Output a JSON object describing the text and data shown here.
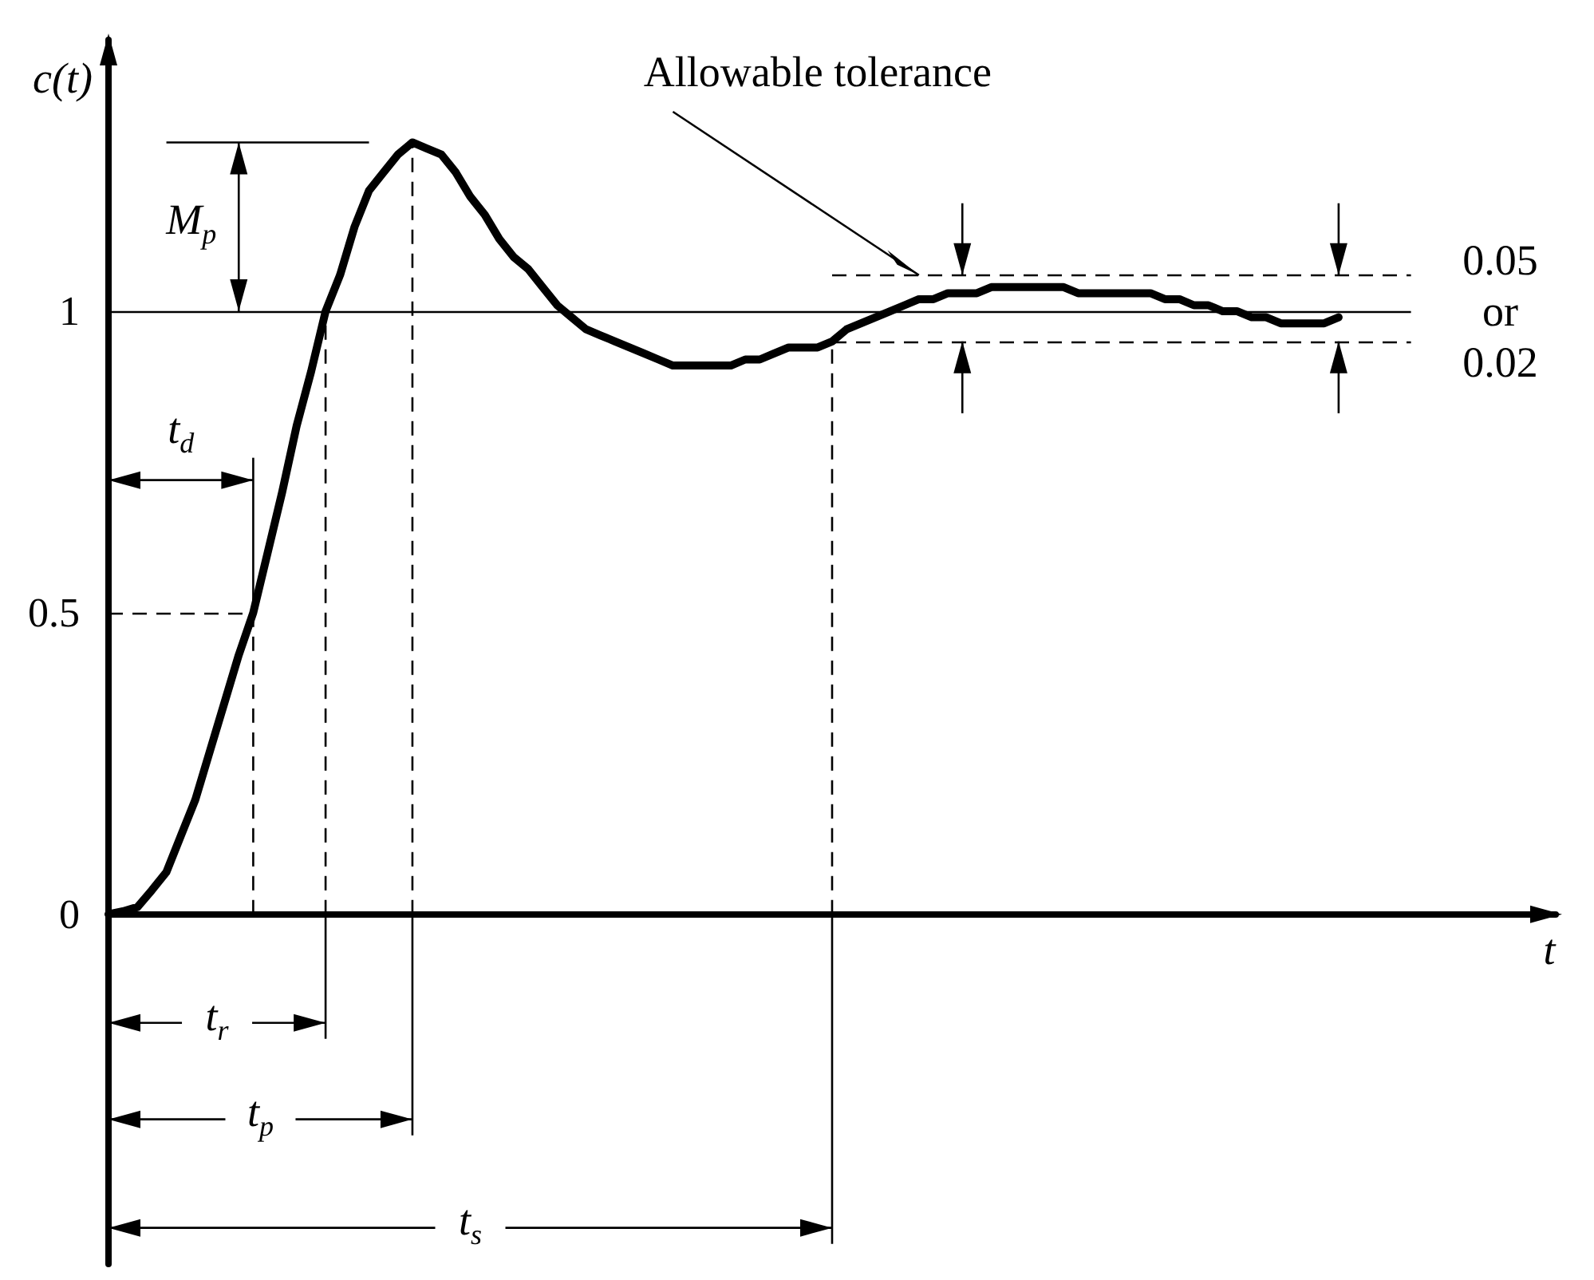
{
  "chart_data": {
    "type": "line",
    "xlabel": "t",
    "ylabel": "c(t)",
    "categories": [
      null,
      null,
      null,
      null,
      null,
      null,
      null,
      null,
      null,
      null,
      null,
      null,
      null,
      null,
      null,
      null,
      null,
      null,
      null,
      null,
      null,
      null,
      null,
      null,
      null,
      null,
      null,
      null,
      null,
      null,
      null,
      null,
      null,
      null,
      null,
      null,
      null,
      null,
      null,
      null,
      null,
      null,
      null,
      null,
      null,
      null,
      null,
      null,
      null,
      null,
      null,
      null,
      null,
      null,
      null,
      null,
      null,
      null,
      null,
      null,
      null,
      null,
      null,
      null,
      null,
      null,
      null,
      null,
      null,
      null,
      null,
      null,
      null,
      null,
      null,
      null,
      null,
      null,
      null,
      null,
      null,
      null,
      null,
      null,
      null,
      null,
      null,
      null,
      null,
      null,
      null,
      null,
      null,
      null,
      null,
      null,
      null,
      null,
      null,
      null,
      null
    ],
    "values": [
      0,
      0.005,
      0.012,
      0.04,
      0.07,
      0.13,
      0.19,
      0.27,
      0.35,
      0.43,
      0.5,
      0.6,
      0.7,
      0.81,
      0.9,
      1,
      1.06,
      1.14,
      1.2,
      1.23,
      1.26,
      1.28,
      1.27,
      1.26,
      1.23,
      1.19,
      1.16,
      1.12,
      1.09,
      1.07,
      1.04,
      1.01,
      0.99,
      0.97,
      0.96,
      0.95,
      0.94,
      0.93,
      0.92,
      0.91,
      0.91,
      0.91,
      0.91,
      0.91,
      0.92,
      0.92,
      0.93,
      0.94,
      0.94,
      0.94,
      0.95,
      0.97,
      0.98,
      0.99,
      1,
      1.01,
      1.02,
      1.02,
      1.03,
      1.03,
      1.03,
      1.04,
      1.04,
      1.04,
      1.04,
      1.04,
      1.04,
      1.03,
      1.03,
      1.03,
      1.03,
      1.03,
      1.03,
      1.02,
      1.02,
      1.01,
      1.01,
      1,
      1,
      0.99,
      0.99,
      0.98,
      0.98,
      0.98,
      0.98,
      0.99,
      null,
      null,
      null,
      null,
      null,
      null,
      null,
      null,
      null,
      null,
      null,
      null,
      null,
      null,
      null
    ],
    "color": "#000000",
    "marker": "none",
    "line_style": "solid",
    "ylim": [
      -0.58,
      1.45
    ],
    "yticks": [
      0,
      0.5,
      1
    ],
    "ref_lines": [
      {
        "axis": "y",
        "value": 1,
        "line_style": "solid",
        "color": "#000000"
      },
      {
        "axis": "y",
        "value": 0.5,
        "line_style": "dashed",
        "color": "#000000"
      },
      {
        "axis": "y",
        "value": 1.06,
        "line_style": "dashed",
        "color": "#000000"
      },
      {
        "axis": "y",
        "value": 0.95,
        "line_style": "dashed",
        "color": "#000000"
      }
    ],
    "annotations": [
      "t$_{d}$",
      "t$_{r}$",
      "t$_{p}$",
      "t$_{s}$",
      "M$_{p}$",
      "Allowable tolerance",
      "0.05\nor\n0.02"
    ]
  }
}
